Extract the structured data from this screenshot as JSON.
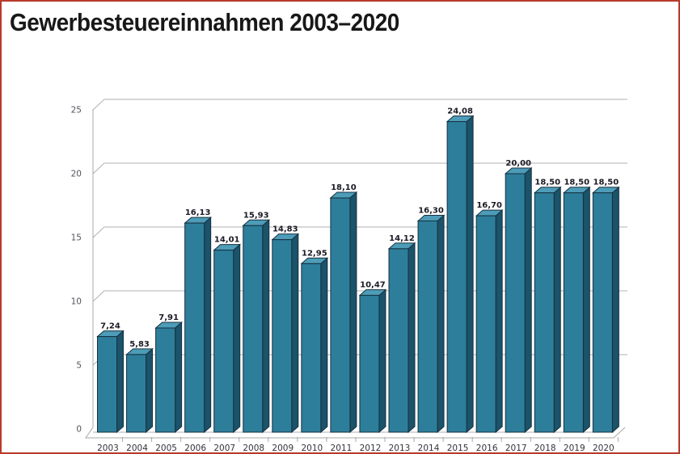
{
  "page": {
    "background": "#ffffff",
    "border_color": "#b83a2c"
  },
  "header": {
    "title": "Gewerbesteuereinnahmen 2003–2020"
  },
  "chart_data": {
    "type": "bar",
    "style": "3d-column",
    "title": "Gewerbesteuereinnahmen 2003–2020",
    "categories": [
      "2003",
      "2004",
      "2005",
      "2006",
      "2007",
      "2008",
      "2009",
      "2010",
      "2011",
      "2012",
      "2013",
      "2014",
      "2015",
      "2016",
      "2017",
      "2018",
      "2019",
      "2020"
    ],
    "values": [
      7.24,
      5.83,
      7.91,
      16.13,
      14.01,
      15.93,
      14.83,
      12.95,
      18.1,
      10.47,
      14.12,
      16.3,
      24.08,
      16.7,
      20.0,
      18.5,
      18.5,
      18.5
    ],
    "value_labels": [
      "7,24",
      "5,83",
      "7,91",
      "16,13",
      "14,01",
      "15,93",
      "14,83",
      "12,95",
      "18,10",
      "10,47",
      "14,12",
      "16,30",
      "24,08",
      "16,70",
      "20,00",
      "18,50",
      "18,50",
      "18,50"
    ],
    "xlabel": "",
    "ylabel": "",
    "ylim": [
      0,
      25
    ],
    "y_ticks": [
      0,
      5,
      10,
      15,
      20,
      25
    ],
    "y_tick_labels": [
      "0",
      "5",
      "10",
      "15",
      "20",
      "25"
    ],
    "grid": true,
    "legend": false,
    "colors": {
      "bar_front": "#2d7e9b",
      "bar_side": "#1a536a",
      "bar_top": "#4d9cb8",
      "bar_outline": "#16303f",
      "gridline": "#b0b0b0",
      "axis": "#a8a8a8",
      "value_label": "#1a1a24",
      "tick_label": "#54545c",
      "category_label": "#33333d"
    }
  }
}
